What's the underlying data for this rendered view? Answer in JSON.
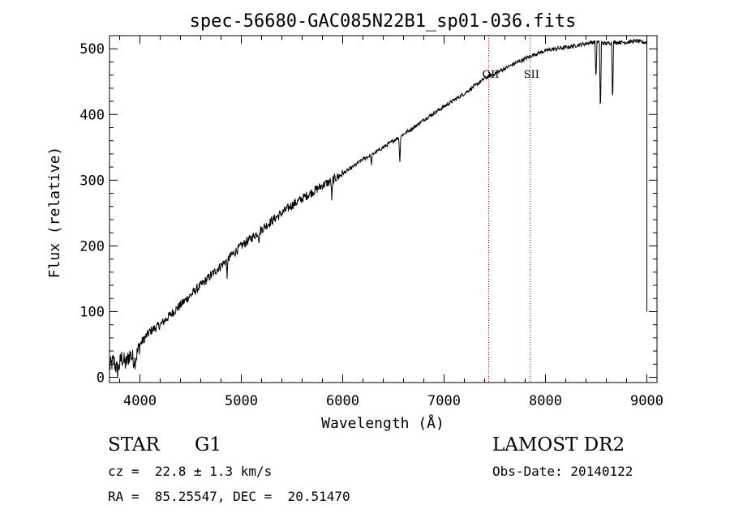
{
  "chart_data": {
    "type": "line",
    "title": "spec-56680-GAC085N22B1_sp01-036.fits",
    "xlabel": "Wavelength (Å)",
    "ylabel": "Flux (relative)",
    "xlim": [
      3700,
      9100
    ],
    "ylim": [
      -8,
      520
    ],
    "xticks": [
      4000,
      5000,
      6000,
      7000,
      8000,
      9000
    ],
    "yticks": [
      0,
      100,
      200,
      300,
      400,
      500
    ],
    "grid": false,
    "line_color": "#000000",
    "series": [
      {
        "name": "flux",
        "x": [
          3700,
          3740,
          3780,
          3820,
          3860,
          3900,
          3950,
          4000,
          4100,
          4200,
          4300,
          4400,
          4500,
          4600,
          4700,
          4800,
          4900,
          5000,
          5100,
          5200,
          5300,
          5400,
          5500,
          5600,
          5700,
          5800,
          5900,
          6000,
          6100,
          6200,
          6300,
          6400,
          6500,
          6600,
          6700,
          6800,
          6900,
          7000,
          7100,
          7200,
          7300,
          7400,
          7500,
          7600,
          7700,
          7800,
          7900,
          8000,
          8100,
          8200,
          8300,
          8400,
          8450,
          8500,
          8600,
          8700,
          8800,
          8900,
          8950,
          9000
        ],
        "y": [
          15,
          25,
          10,
          30,
          20,
          35,
          25,
          50,
          70,
          80,
          95,
          110,
          125,
          140,
          155,
          170,
          185,
          200,
          212,
          225,
          238,
          250,
          262,
          272,
          282,
          292,
          300,
          310,
          320,
          332,
          340,
          350,
          360,
          370,
          380,
          392,
          402,
          412,
          422,
          432,
          443,
          455,
          462,
          470,
          478,
          485,
          492,
          497,
          500,
          502,
          505,
          508,
          510,
          510,
          508,
          510,
          510,
          512,
          510,
          510
        ]
      }
    ],
    "absorption_lines": [
      {
        "x": 4861,
        "depth": 25
      },
      {
        "x": 5175,
        "depth": 15
      },
      {
        "x": 5893,
        "depth": 30
      },
      {
        "x": 6283,
        "depth": 15
      },
      {
        "x": 6563,
        "depth": 40
      },
      {
        "x": 8498,
        "depth": 60
      },
      {
        "x": 8542,
        "depth": 115
      },
      {
        "x": 8662,
        "depth": 95
      }
    ],
    "reference_lines": [
      {
        "x": 7440,
        "label": "OII",
        "color": "#b00000"
      },
      {
        "x": 7850,
        "label": "SII",
        "color": "#b00000"
      }
    ]
  },
  "info": {
    "object_class": "STAR",
    "subclass": "G1",
    "redshift": "cz =  22.8 ± 1.3 km/s",
    "coords": "RA =  85.25547, DEC =  20.51470",
    "survey": "LAMOST DR2",
    "obs_date": "Obs-Date: 20140122"
  }
}
